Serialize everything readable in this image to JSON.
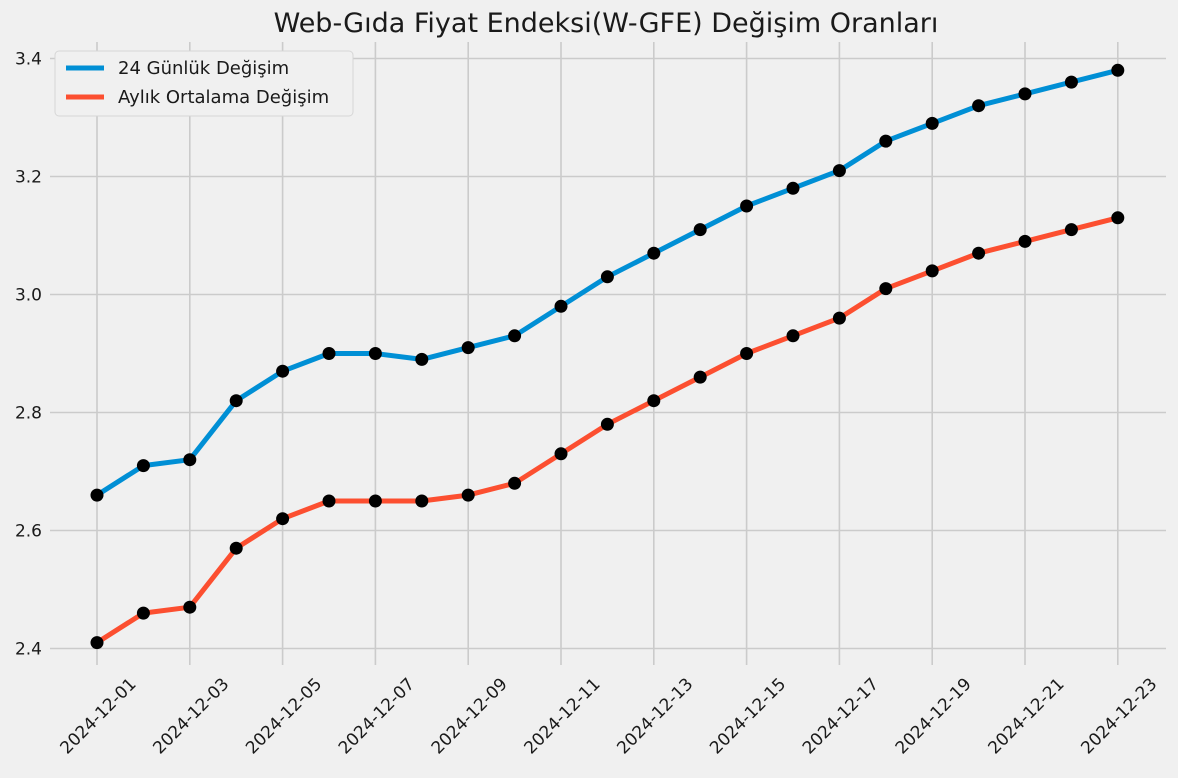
{
  "chart_data": {
    "type": "line",
    "title": "Web-Gıda Fiyat Endeksi(W-GFE) Değişim Oranları",
    "xlabel": "",
    "ylabel": "",
    "x": [
      "2024-12-01",
      "2024-12-02",
      "2024-12-03",
      "2024-12-04",
      "2024-12-05",
      "2024-12-06",
      "2024-12-07",
      "2024-12-08",
      "2024-12-09",
      "2024-12-10",
      "2024-12-11",
      "2024-12-12",
      "2024-12-13",
      "2024-12-14",
      "2024-12-15",
      "2024-12-16",
      "2024-12-17",
      "2024-12-18",
      "2024-12-19",
      "2024-12-20",
      "2024-12-21",
      "2024-12-22",
      "2024-12-23"
    ],
    "x_tick_labels": [
      "2024-12-01",
      "2024-12-03",
      "2024-12-05",
      "2024-12-07",
      "2024-12-09",
      "2024-12-11",
      "2024-12-13",
      "2024-12-15",
      "2024-12-17",
      "2024-12-19",
      "2024-12-21",
      "2024-12-23"
    ],
    "y_tick_labels": [
      "2.4",
      "2.6",
      "2.8",
      "3.0",
      "3.2",
      "3.4"
    ],
    "ylim": [
      2.37,
      3.42
    ],
    "grid": true,
    "legend_position": "top-left",
    "marker_color": "#000000",
    "series": [
      {
        "name": "24 Günlük Değişim",
        "color": "#008fd5",
        "values": [
          2.66,
          2.71,
          2.72,
          2.82,
          2.87,
          2.9,
          2.9,
          2.89,
          2.91,
          2.93,
          2.98,
          3.03,
          3.07,
          3.11,
          3.15,
          3.18,
          3.21,
          3.26,
          3.29,
          3.32,
          3.34,
          3.36,
          3.38
        ]
      },
      {
        "name": "Aylık Ortalama Değişim",
        "color": "#fc4f30",
        "values": [
          2.41,
          2.46,
          2.47,
          2.57,
          2.62,
          2.65,
          2.65,
          2.65,
          2.66,
          2.68,
          2.73,
          2.78,
          2.82,
          2.86,
          2.9,
          2.93,
          2.96,
          3.01,
          3.04,
          3.07,
          3.09,
          3.11,
          3.13
        ]
      }
    ]
  }
}
